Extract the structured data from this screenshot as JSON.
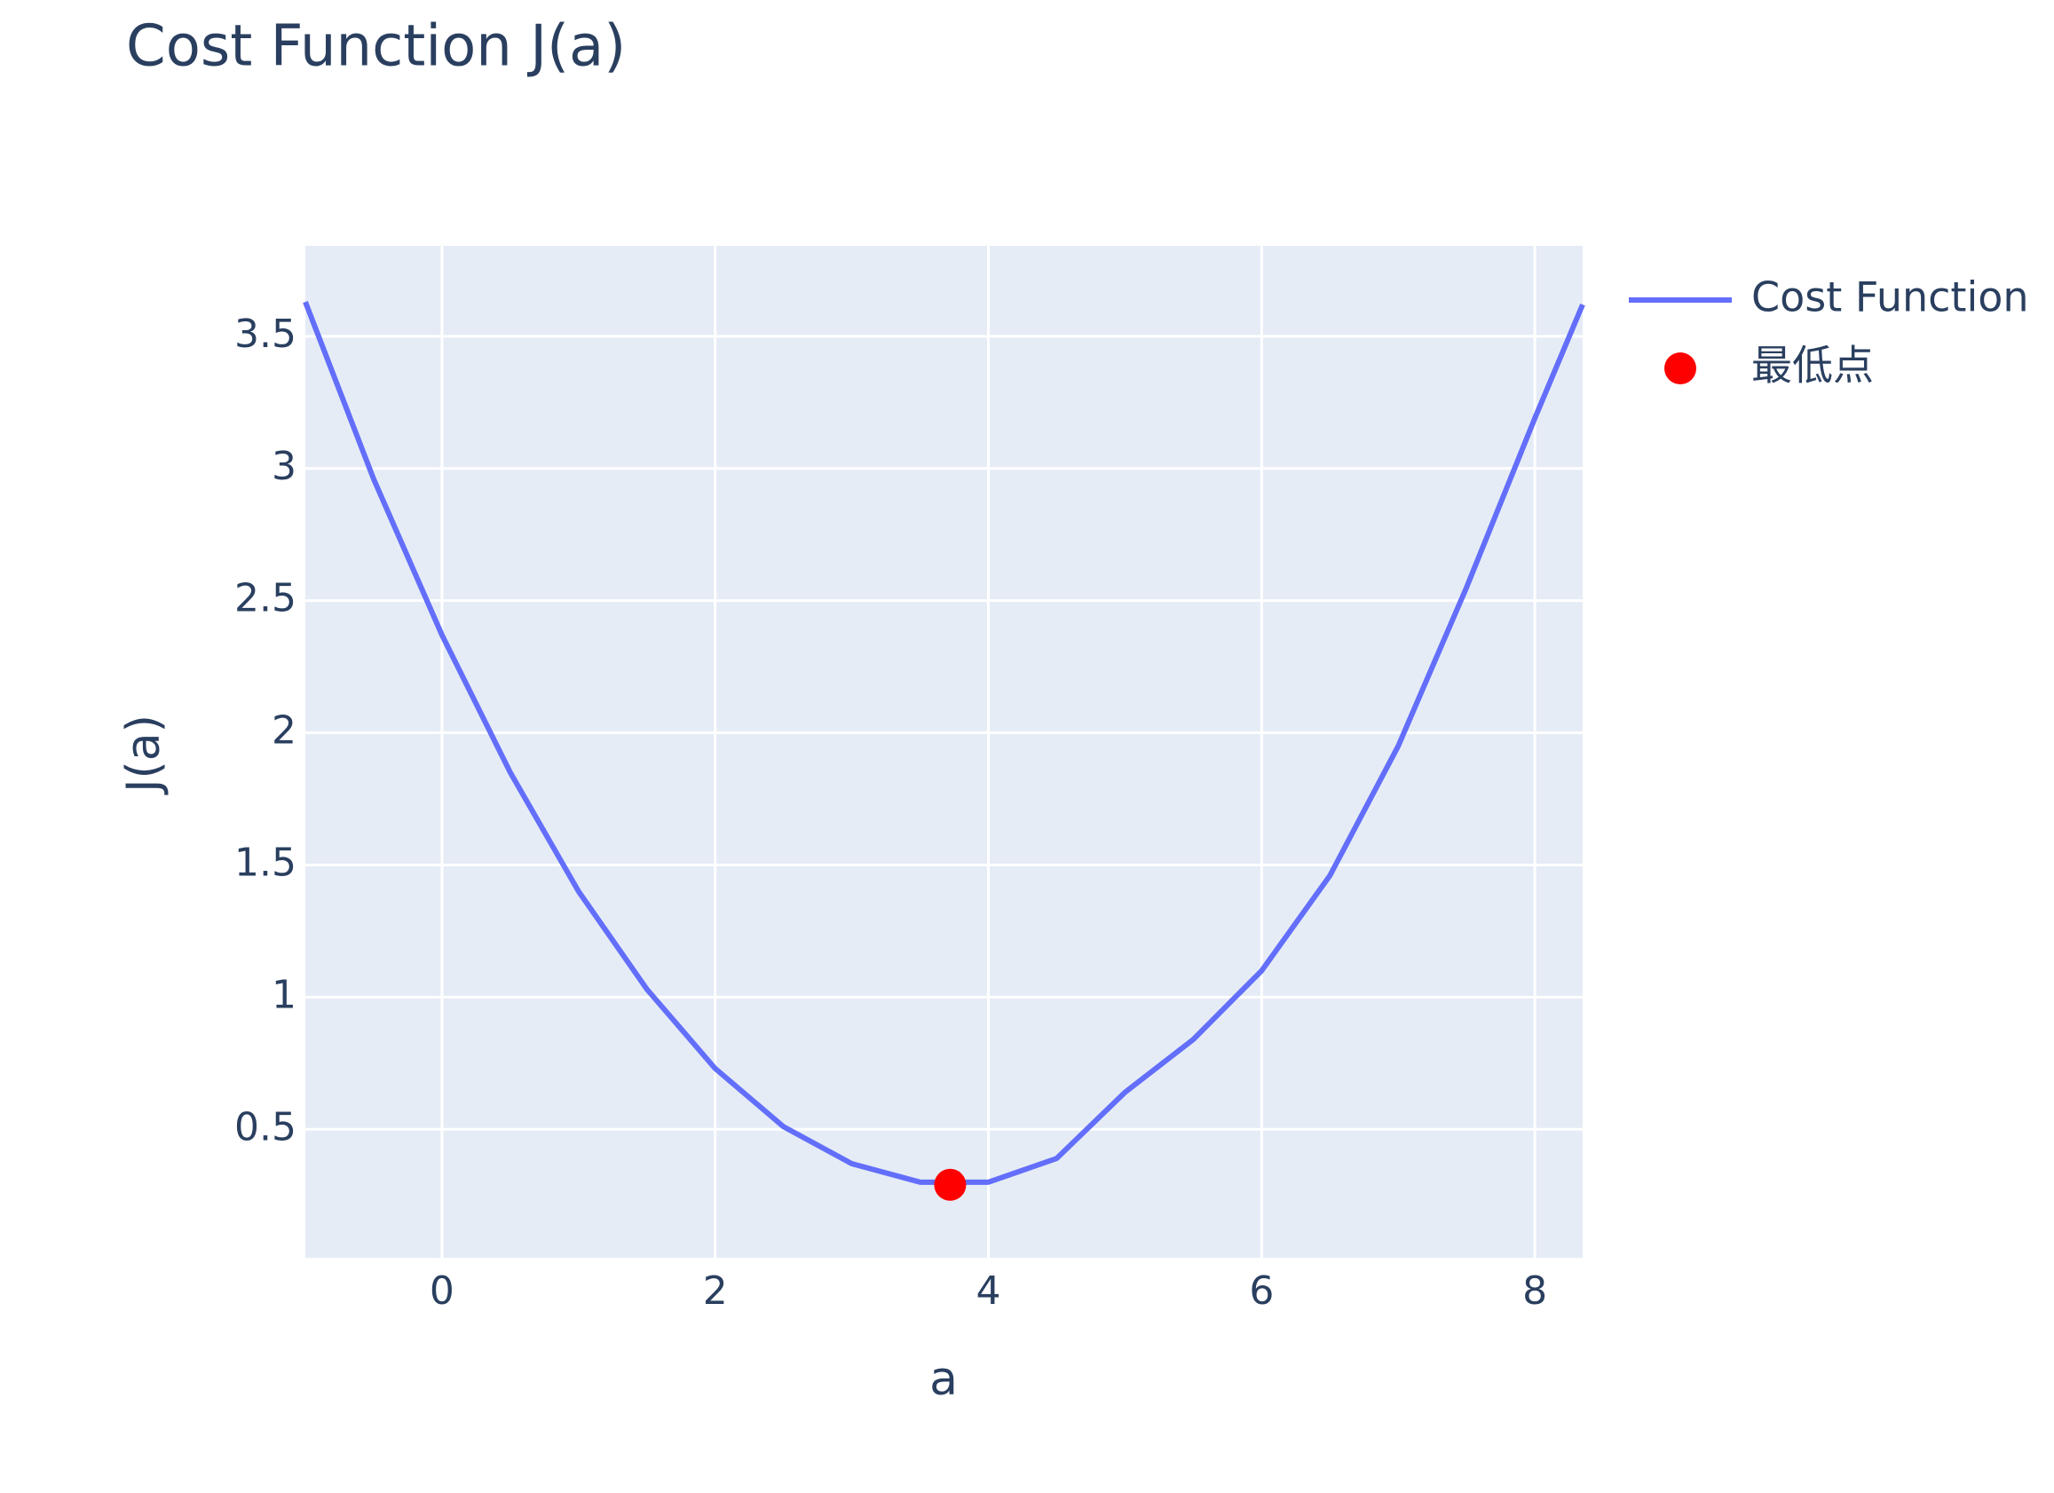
{
  "chart_data": {
    "type": "line",
    "title": "Cost Function J(a)",
    "x_label": "a",
    "y_label": "J(a)",
    "xlim": [
      -1,
      8.35
    ],
    "ylim": [
      0.014,
      3.842
    ],
    "xticks": [
      0,
      2,
      4,
      6,
      8
    ],
    "yticks": [
      0.5,
      1,
      1.5,
      2,
      2.5,
      3,
      3.5
    ],
    "grid": true,
    "series": [
      {
        "name": "Cost Function",
        "color": "#636efa",
        "mode": "lines",
        "x": [
          -1,
          -0.5,
          0,
          0.5,
          1,
          1.5,
          2,
          2.5,
          3,
          3.5,
          4,
          4.5,
          5,
          5.5,
          6,
          6.5,
          7,
          7.5,
          8,
          8.35
        ],
        "values": [
          3.63,
          2.96,
          2.37,
          1.85,
          1.4,
          1.03,
          0.73,
          0.51,
          0.37,
          0.3,
          0.3,
          0.39,
          0.64,
          0.84,
          1.1,
          1.46,
          1.95,
          2.55,
          3.19,
          3.62
        ]
      },
      {
        "name": "最低点",
        "color": "#ff0000",
        "mode": "markers",
        "x": [
          3.72
        ],
        "values": [
          0.29
        ]
      }
    ]
  }
}
